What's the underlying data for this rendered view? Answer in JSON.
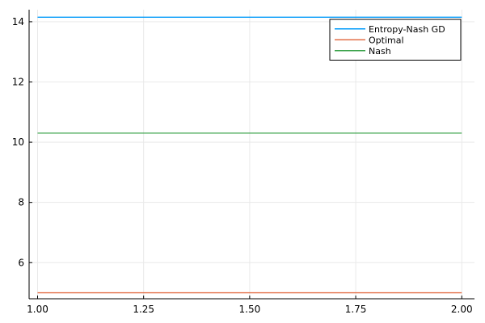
{
  "chart_data": {
    "type": "line",
    "title": "",
    "xlabel": "",
    "ylabel": "",
    "xlim": [
      0.98,
      2.03
    ],
    "ylim": [
      4.8,
      14.4
    ],
    "xticks": [
      1.0,
      1.25,
      1.5,
      1.75,
      2.0
    ],
    "xtick_labels": [
      "1.00",
      "1.25",
      "1.50",
      "1.75",
      "2.00"
    ],
    "yticks": [
      6,
      8,
      10,
      12,
      14
    ],
    "ytick_labels": [
      "6",
      "8",
      "10",
      "12",
      "14"
    ],
    "grid": true,
    "legend_position": "top-right",
    "series": [
      {
        "name": "Entropy-Nash GD",
        "color": "#009AFA",
        "x": [
          1.0,
          2.0
        ],
        "y": [
          14.15,
          14.15
        ]
      },
      {
        "name": "Optimal",
        "color": "#E36F47",
        "x": [
          1.0,
          2.0
        ],
        "y": [
          5.0,
          5.0
        ]
      },
      {
        "name": "Nash",
        "color": "#3EA44E",
        "x": [
          1.0,
          2.0
        ],
        "y": [
          10.3,
          10.3
        ]
      }
    ]
  }
}
